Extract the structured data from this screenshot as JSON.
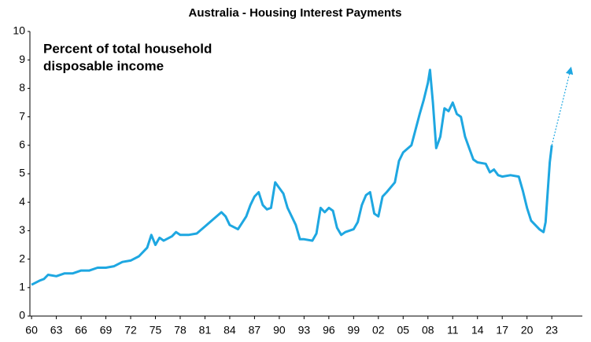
{
  "chart_data": {
    "type": "line",
    "title": "Australia - Housing Interest Payments",
    "annotation": [
      "Percent of total household",
      "disposable income"
    ],
    "color": "#1ea7e1",
    "x": [
      1960,
      1961,
      1961.5,
      1962,
      1963,
      1964,
      1965,
      1966,
      1967,
      1968,
      1969,
      1970,
      1971,
      1972,
      1973,
      1974,
      1974.5,
      1975,
      1975.5,
      1976,
      1977,
      1977.5,
      1978,
      1979,
      1980,
      1981,
      1982,
      1983,
      1983.5,
      1984,
      1985,
      1986,
      1986.5,
      1987,
      1987.5,
      1988,
      1988.5,
      1989,
      1989.5,
      1990,
      1990.5,
      1991,
      1992,
      1992.5,
      1993,
      1994,
      1994.5,
      1995,
      1995.5,
      1996,
      1996.5,
      1997,
      1997.5,
      1998,
      1999,
      1999.5,
      2000,
      2000.5,
      2001,
      2001.5,
      2002,
      2002.5,
      2003,
      2004,
      2004.5,
      2005,
      2006,
      2007,
      2007.5,
      2008,
      2008.25,
      2008.6,
      2009,
      2009.5,
      2010,
      2010.5,
      2011,
      2011.5,
      2012,
      2012.5,
      2013,
      2013.5,
      2014,
      2015,
      2015.5,
      2016,
      2016.5,
      2017,
      2018,
      2019,
      2019.5,
      2020,
      2020.5,
      2021,
      2021.5,
      2022,
      2022.25,
      2022.75,
      2023
    ],
    "values": [
      1.1,
      1.25,
      1.3,
      1.45,
      1.4,
      1.5,
      1.5,
      1.6,
      1.6,
      1.7,
      1.7,
      1.75,
      1.9,
      1.95,
      2.1,
      2.4,
      2.85,
      2.5,
      2.75,
      2.65,
      2.8,
      2.95,
      2.85,
      2.85,
      2.9,
      3.15,
      3.4,
      3.65,
      3.5,
      3.2,
      3.05,
      3.5,
      3.9,
      4.2,
      4.35,
      3.9,
      3.75,
      3.8,
      4.7,
      4.5,
      4.3,
      3.8,
      3.2,
      2.7,
      2.7,
      2.65,
      2.9,
      3.8,
      3.65,
      3.8,
      3.7,
      3.1,
      2.85,
      2.95,
      3.05,
      3.3,
      3.9,
      4.25,
      4.35,
      3.6,
      3.5,
      4.2,
      4.35,
      4.7,
      5.45,
      5.75,
      6.0,
      7.1,
      7.6,
      8.2,
      8.65,
      7.5,
      5.9,
      6.3,
      7.3,
      7.2,
      7.5,
      7.1,
      7.0,
      6.3,
      5.9,
      5.5,
      5.4,
      5.35,
      5.05,
      5.15,
      4.95,
      4.9,
      4.95,
      4.9,
      4.4,
      3.8,
      3.35,
      3.2,
      3.05,
      2.95,
      3.3,
      5.4,
      6.0
    ],
    "forecast": {
      "x": [
        2023,
        2025.3
      ],
      "values": [
        6.0,
        8.7
      ]
    },
    "xlim": [
      1959.8,
      2026.7
    ],
    "ylim": [
      0,
      10
    ],
    "xticks": [
      {
        "value": 1960,
        "label": "60"
      },
      {
        "value": 1963,
        "label": "63"
      },
      {
        "value": 1966,
        "label": "66"
      },
      {
        "value": 1969,
        "label": "69"
      },
      {
        "value": 1972,
        "label": "72"
      },
      {
        "value": 1975,
        "label": "75"
      },
      {
        "value": 1978,
        "label": "78"
      },
      {
        "value": 1981,
        "label": "81"
      },
      {
        "value": 1984,
        "label": "84"
      },
      {
        "value": 1987,
        "label": "87"
      },
      {
        "value": 1990,
        "label": "90"
      },
      {
        "value": 1993,
        "label": "93"
      },
      {
        "value": 1996,
        "label": "96"
      },
      {
        "value": 1999,
        "label": "99"
      },
      {
        "value": 2002,
        "label": "02"
      },
      {
        "value": 2005,
        "label": "05"
      },
      {
        "value": 2008,
        "label": "08"
      },
      {
        "value": 2011,
        "label": "11"
      },
      {
        "value": 2014,
        "label": "14"
      },
      {
        "value": 2017,
        "label": "17"
      },
      {
        "value": 2020,
        "label": "20"
      },
      {
        "value": 2023,
        "label": "23"
      }
    ],
    "yticks": [
      0,
      1,
      2,
      3,
      4,
      5,
      6,
      7,
      8,
      9,
      10
    ],
    "grid": false
  }
}
